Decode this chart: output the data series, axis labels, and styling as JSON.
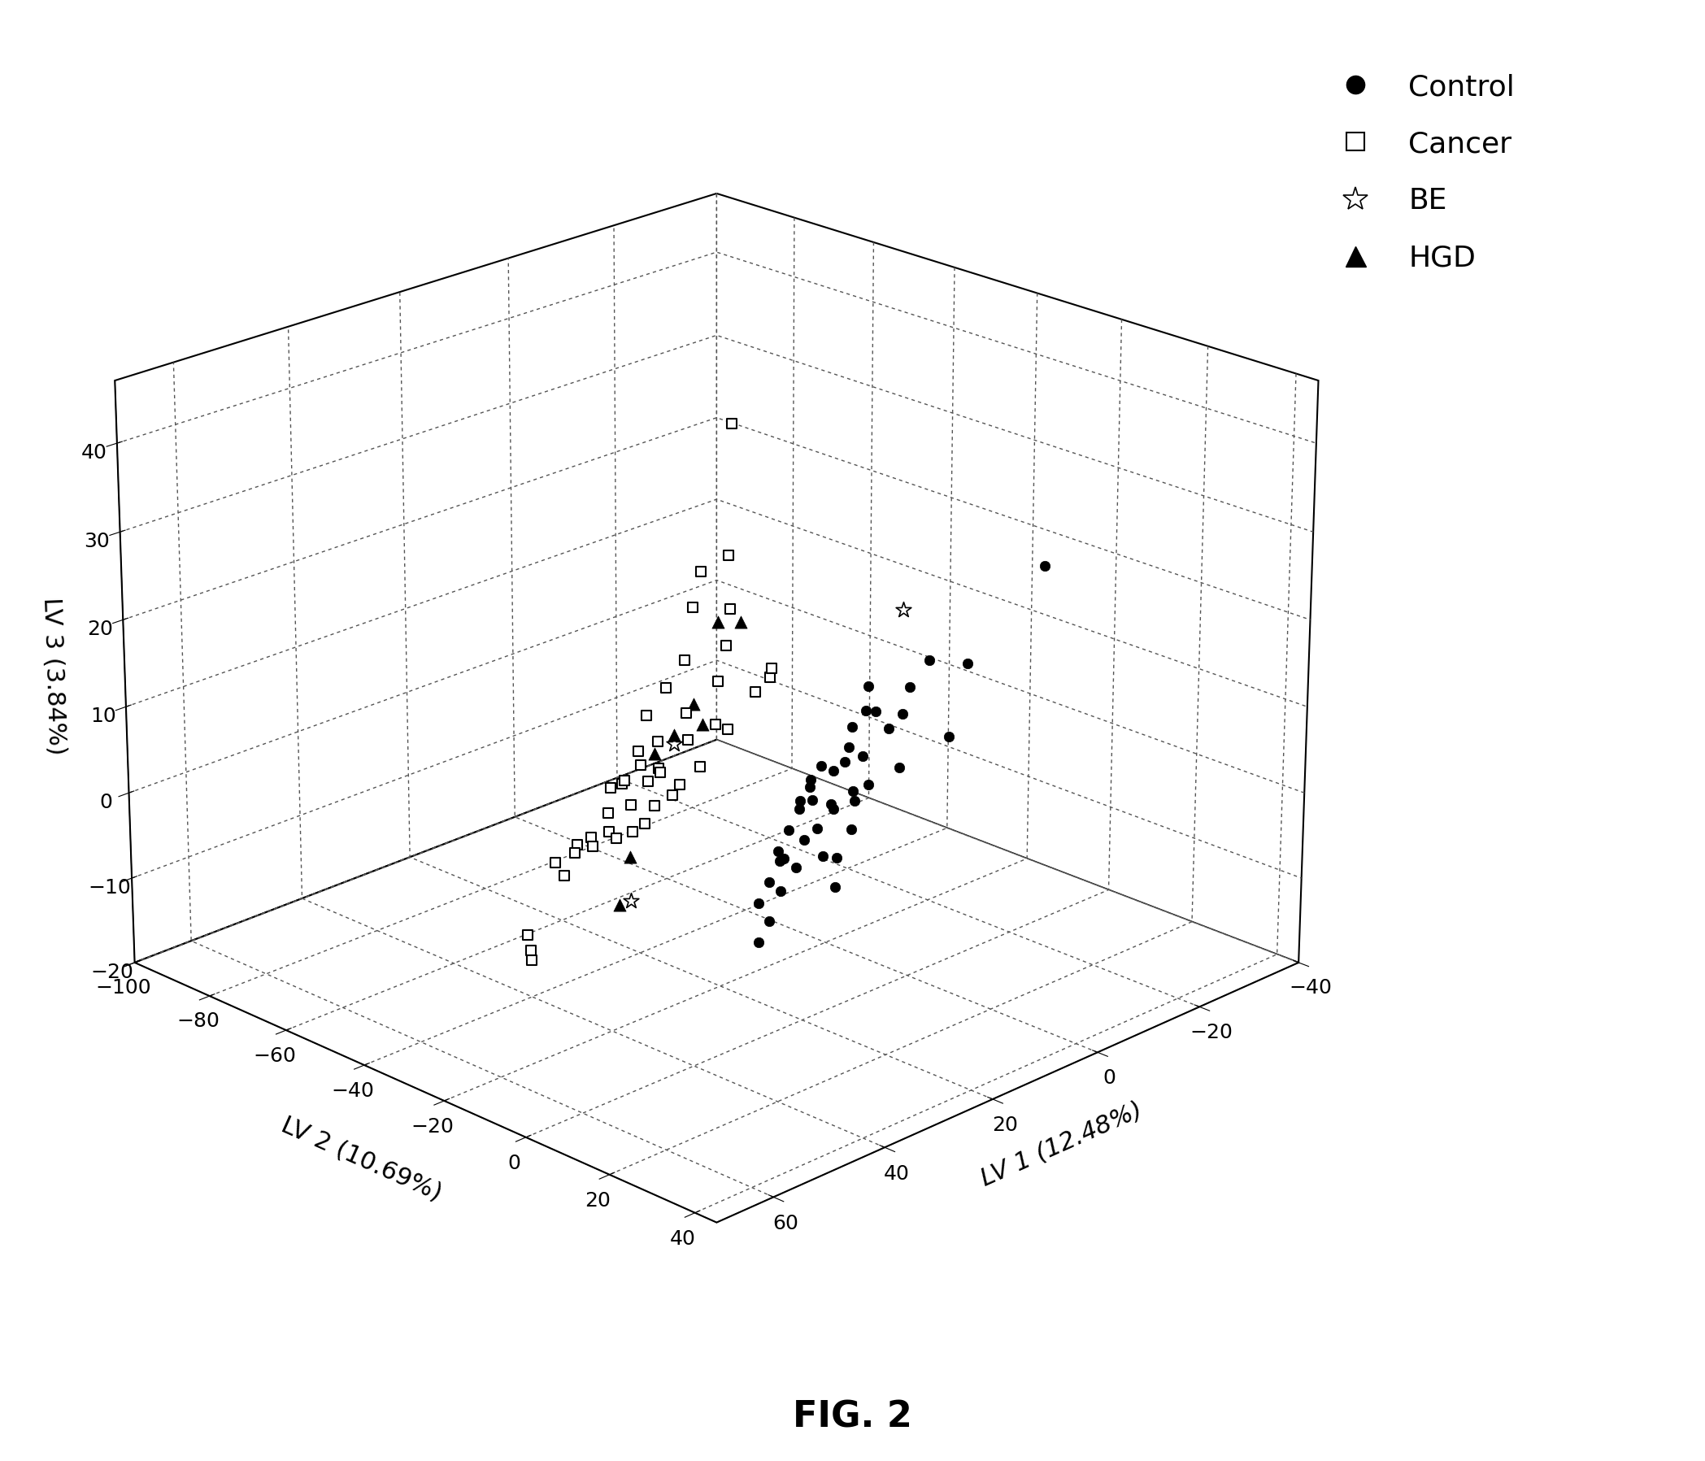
{
  "title": "FIG. 2",
  "xlabel": "LV 1 (12.48%)",
  "ylabel": "LV 2 (10.69%)",
  "zlabel": "LV 3 (3.84%)",
  "xlim": [
    -40,
    70
  ],
  "ylim": [
    -100,
    45
  ],
  "zlim": [
    -20,
    47
  ],
  "xticks": [
    -40,
    -20,
    0,
    20,
    40,
    60
  ],
  "yticks": [
    -100,
    -80,
    -60,
    -40,
    -20,
    0,
    20,
    40
  ],
  "zticks": [
    -20,
    -10,
    0,
    10,
    20,
    30,
    40
  ],
  "control": {
    "lv1": [
      -30,
      -15,
      -10,
      -10,
      -8,
      -5,
      -3,
      -2,
      0,
      0,
      2,
      2,
      3,
      3,
      4,
      5,
      5,
      6,
      6,
      7,
      7,
      8,
      8,
      9,
      10,
      10,
      12,
      12,
      15,
      18,
      20,
      22,
      5,
      7,
      9,
      11,
      13,
      3,
      5,
      8,
      15,
      17,
      19
    ],
    "lv2": [
      -5,
      -5,
      -8,
      -3,
      -10,
      -8,
      -12,
      -5,
      -10,
      -5,
      -8,
      -12,
      -10,
      -6,
      -8,
      -5,
      -12,
      -8,
      -6,
      -10,
      -5,
      -8,
      -12,
      -6,
      -8,
      -5,
      -8,
      -10,
      -8,
      -8,
      -8,
      -8,
      -15,
      -15,
      -15,
      -15,
      -15,
      -20,
      -20,
      -20,
      -12,
      -12,
      -12
    ],
    "lv3": [
      20,
      12,
      13,
      5,
      10,
      8,
      8,
      3,
      12,
      8,
      10,
      5,
      8,
      2,
      0,
      6,
      3,
      5,
      2,
      0,
      -2,
      0,
      -3,
      -5,
      -5,
      -8,
      2,
      -3,
      -5,
      -7,
      -10,
      -12,
      3,
      1,
      -1,
      -3,
      -5,
      0,
      -2,
      -8,
      -5,
      -7,
      -9
    ]
  },
  "cancer": {
    "lv1": [
      18,
      20,
      22,
      22,
      25,
      25,
      28,
      28,
      30,
      30,
      32,
      32,
      33,
      35,
      35,
      35,
      36,
      37,
      38,
      38,
      39,
      40,
      40,
      42,
      42,
      44,
      45,
      45,
      46,
      47,
      48,
      50,
      52,
      55,
      58,
      60,
      20,
      30,
      40,
      22,
      25,
      30,
      35,
      40,
      45
    ],
    "lv2": [
      -20,
      -18,
      -22,
      -15,
      -20,
      -12,
      -18,
      -10,
      -20,
      -15,
      -22,
      -12,
      -18,
      -20,
      -15,
      -10,
      -18,
      -15,
      -20,
      -12,
      -18,
      -20,
      -15,
      -18,
      -12,
      -15,
      -18,
      -12,
      -20,
      -15,
      -18,
      -20,
      -15,
      -20,
      -15,
      -12,
      -8,
      -8,
      -8,
      -5,
      -5,
      -5,
      -5,
      -5,
      -5
    ],
    "lv3": [
      44,
      30,
      28,
      25,
      25,
      22,
      20,
      19,
      17,
      15,
      14,
      13,
      12,
      11,
      10,
      9,
      10,
      9,
      8,
      7,
      9,
      8,
      7,
      6,
      5,
      5,
      4,
      5,
      3,
      4,
      3,
      2,
      2,
      -5,
      -5,
      -5,
      18,
      15,
      12,
      20,
      18,
      15,
      12,
      10,
      8
    ]
  },
  "be": {
    "lv1": [
      -5,
      30,
      38
    ],
    "lv2": [
      -8,
      -18,
      -18
    ],
    "lv3": [
      20,
      11,
      -5
    ]
  },
  "hgd": {
    "lv1": [
      20,
      22,
      25,
      27,
      30,
      32,
      38,
      40
    ],
    "lv2": [
      -15,
      -18,
      -20,
      -15,
      -18,
      -20,
      -18,
      -18
    ],
    "lv3": [
      23,
      23,
      14,
      13,
      12,
      10,
      0,
      -5
    ]
  },
  "background_color": "#ffffff",
  "marker_size_circle": 80,
  "marker_size_square": 80,
  "marker_size_star": 200,
  "marker_size_triangle": 120,
  "elev": 22,
  "azim": 45
}
